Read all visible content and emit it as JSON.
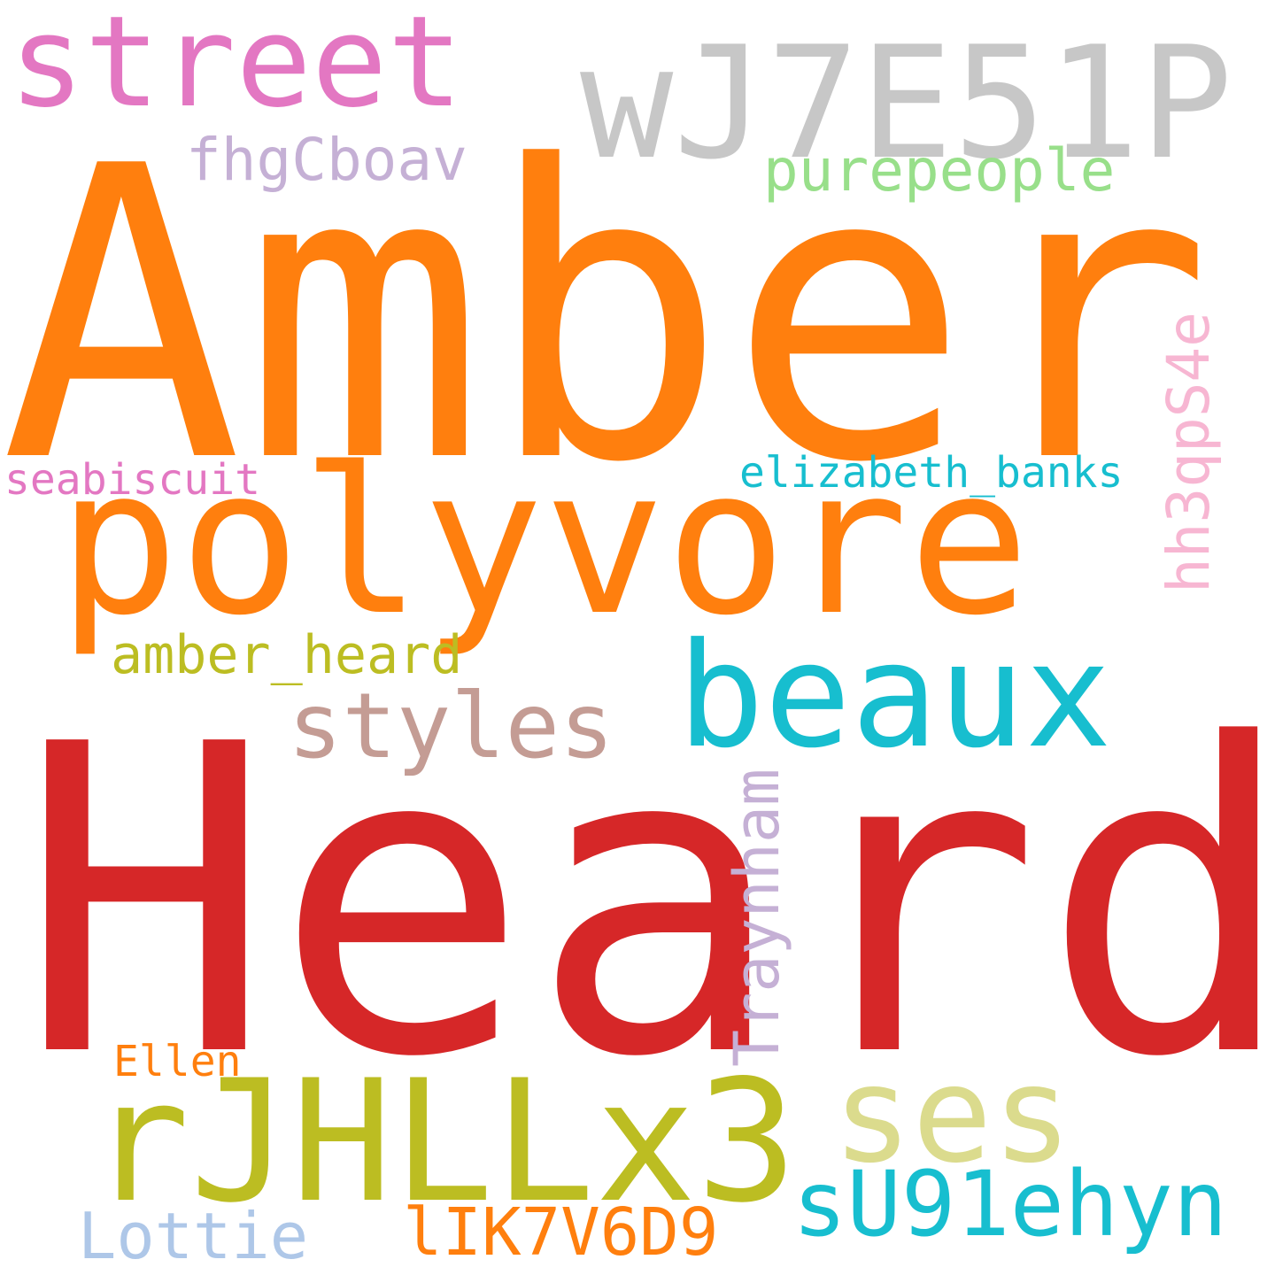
{
  "words": [
    {
      "id": "heard",
      "text": "Heard",
      "color": "#d62728"
    },
    {
      "id": "amber",
      "text": "Amber",
      "color": "#ff7f0e"
    },
    {
      "id": "polyvore",
      "text": "polyvore",
      "color": "#ff7f0e"
    },
    {
      "id": "wj7e51p",
      "text": "wJ7E51P",
      "color": "#c7c7c7"
    },
    {
      "id": "street",
      "text": "street",
      "color": "#e377c2"
    },
    {
      "id": "rjhllx3",
      "text": "rJHLLx3",
      "color": "#bcbd22"
    },
    {
      "id": "beaux",
      "text": "beaux",
      "color": "#17becf"
    },
    {
      "id": "ses",
      "text": "ses",
      "color": "#dbdb8d"
    },
    {
      "id": "styles",
      "text": "styles",
      "color": "#c49c94"
    },
    {
      "id": "su91ehyn",
      "text": "sU91ehyn",
      "color": "#17becf"
    },
    {
      "id": "lik7v6d9",
      "text": "lIK7V6D9",
      "color": "#ff7f0e"
    },
    {
      "id": "lottie",
      "text": "Lottie",
      "color": "#aec7e8"
    },
    {
      "id": "traynham",
      "text": "Traynham",
      "color": "#c5b0d5"
    },
    {
      "id": "hh3qps4e",
      "text": "hh3qpS4e",
      "color": "#f7b6d2"
    },
    {
      "id": "fhgcboav",
      "text": "fhgCboav",
      "color": "#c5b0d5"
    },
    {
      "id": "purepeople",
      "text": "purepeople",
      "color": "#98df8a"
    },
    {
      "id": "amber-heard",
      "text": "amber_heard",
      "color": "#bcbd22"
    },
    {
      "id": "elizabeth-banks",
      "text": "elizabeth_banks",
      "color": "#17becf"
    },
    {
      "id": "seabiscuit",
      "text": "seabiscuit",
      "color": "#e377c2"
    },
    {
      "id": "ellen",
      "text": "Ellen",
      "color": "#ff7f0e"
    }
  ]
}
